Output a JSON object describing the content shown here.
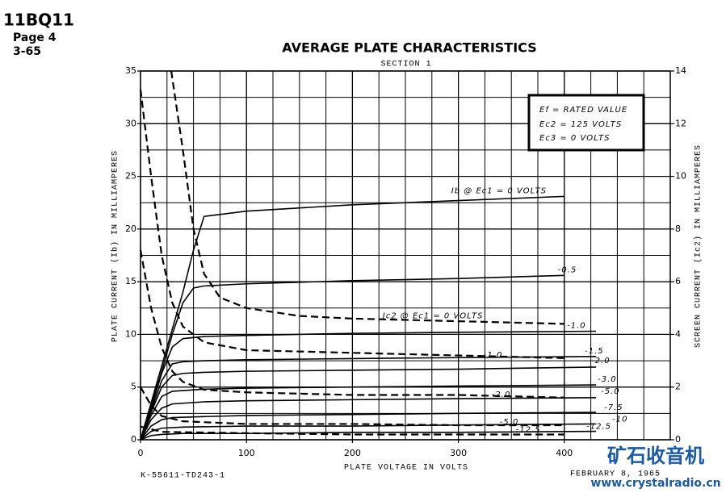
{
  "header": {
    "tube": "11BQ11",
    "page": "Page 4",
    "date_code": "3-65"
  },
  "footer": {
    "drawing_no": "K-55611-TD243-1",
    "date": "FEBRUARY 8, 1965"
  },
  "watermark": {
    "title": "矿石收音机",
    "url": "www.crystalradio.cn"
  },
  "chart_data": {
    "type": "line",
    "title": "AVERAGE PLATE CHARACTERISTICS",
    "subtitle": "SECTION 1",
    "x_label": "PLATE VOLTAGE IN VOLTS",
    "y_label": "PLATE CURRENT (Ib) IN MILLIAMPERES",
    "y2_label": "SCREEN CURRENT (Ic2) IN MILLIAMPERES",
    "notes": [
      "Ef = RATED VALUE",
      "Ec2 = 125 VOLTS",
      "Ec3 = 0 VOLTS"
    ],
    "xlim": [
      0,
      500
    ],
    "xticks": [
      0,
      100,
      200,
      300,
      400
    ],
    "ylim": [
      0,
      35
    ],
    "yticks": [
      0,
      5,
      10,
      15,
      20,
      25,
      30,
      35
    ],
    "y2lim": [
      0,
      14
    ],
    "y2ticks": [
      0,
      2,
      4,
      6,
      8,
      10,
      12,
      14
    ],
    "grid": true,
    "series": [
      {
        "name": "Ib @ Ec1 = 0 VOLTS",
        "color": "#000000",
        "x": [
          0,
          10,
          20,
          30,
          40,
          50,
          60,
          100,
          200,
          300,
          400
        ],
        "values": [
          0,
          3.5,
          7,
          10.5,
          14,
          18,
          21.2,
          21.7,
          22.3,
          22.7,
          23.1
        ]
      },
      {
        "name": "-0.5",
        "color": "#000000",
        "x": [
          0,
          10,
          20,
          30,
          40,
          50,
          60,
          100,
          200,
          300,
          400
        ],
        "values": [
          0,
          3.2,
          6.5,
          10,
          13,
          14.4,
          14.6,
          14.8,
          15.1,
          15.3,
          15.6
        ]
      },
      {
        "name": "-1.0",
        "color": "#000000",
        "x": [
          0,
          10,
          20,
          30,
          40,
          60,
          100,
          200,
          300,
          430
        ],
        "values": [
          0,
          3,
          6.3,
          8.8,
          9.6,
          9.8,
          9.9,
          10.1,
          10.2,
          10.3
        ]
      },
      {
        "name": "-1.5",
        "color": "#000000",
        "x": [
          0,
          10,
          20,
          30,
          40,
          60,
          100,
          200,
          300,
          430
        ],
        "values": [
          0,
          2.8,
          5.6,
          7.2,
          7.4,
          7.5,
          7.6,
          7.7,
          7.8,
          7.9
        ]
      },
      {
        "name": "-2.0",
        "color": "#000000",
        "x": [
          0,
          10,
          20,
          30,
          40,
          60,
          100,
          200,
          300,
          430
        ],
        "values": [
          0,
          2.6,
          5,
          6.1,
          6.3,
          6.4,
          6.5,
          6.6,
          6.7,
          6.9
        ]
      },
      {
        "name": "-3.0",
        "color": "#000000",
        "x": [
          0,
          10,
          20,
          30,
          60,
          100,
          200,
          300,
          430
        ],
        "values": [
          0,
          2.3,
          4.1,
          4.6,
          4.8,
          4.9,
          5,
          5.1,
          5.2
        ]
      },
      {
        "name": "-5.0",
        "color": "#000000",
        "x": [
          0,
          10,
          20,
          30,
          60,
          100,
          200,
          300,
          430
        ],
        "values": [
          0,
          1.9,
          3,
          3.4,
          3.6,
          3.7,
          3.8,
          3.9,
          4
        ]
      },
      {
        "name": "-7.5",
        "color": "#000000",
        "x": [
          0,
          10,
          20,
          30,
          60,
          100,
          200,
          300,
          430
        ],
        "values": [
          0,
          1.3,
          1.9,
          2.1,
          2.2,
          2.3,
          2.4,
          2.5,
          2.6
        ]
      },
      {
        "name": "-10",
        "color": "#000000",
        "x": [
          0,
          10,
          20,
          40,
          100,
          200,
          300,
          430
        ],
        "values": [
          0,
          0.8,
          1.1,
          1.2,
          1.3,
          1.3,
          1.4,
          1.5
        ]
      },
      {
        "name": "-12.5",
        "color": "#000000",
        "x": [
          0,
          10,
          20,
          40,
          100,
          200,
          300,
          430
        ],
        "values": [
          0,
          0.4,
          0.5,
          0.6,
          0.6,
          0.7,
          0.7,
          0.8
        ]
      },
      {
        "name": "Ic2 @ Ec1 = 0 VOLTS",
        "color": "#000000",
        "axis": "y2",
        "dashed": true,
        "x": [
          29,
          40,
          50,
          60,
          75,
          100,
          150,
          200,
          300,
          400
        ],
        "values": [
          14,
          11,
          8,
          6.3,
          5.4,
          5,
          4.7,
          4.6,
          4.5,
          4.4
        ]
      },
      {
        "name": "-1.0",
        "color": "#000000",
        "axis": "y2",
        "dashed": true,
        "x": [
          0,
          10,
          20,
          30,
          40,
          60,
          100,
          200,
          300,
          400
        ],
        "values": [
          13.3,
          10,
          7,
          5.2,
          4.3,
          3.7,
          3.4,
          3.3,
          3.2,
          3.1
        ]
      },
      {
        "name": "-2.0",
        "color": "#000000",
        "axis": "y2",
        "dashed": true,
        "x": [
          0,
          10,
          20,
          30,
          40,
          60,
          100,
          200,
          300,
          400
        ],
        "values": [
          7.2,
          5,
          3.5,
          2.6,
          2.2,
          1.9,
          1.8,
          1.7,
          1.7,
          1.6
        ]
      },
      {
        "name": "-5.0",
        "color": "#000000",
        "axis": "y2",
        "dashed": true,
        "x": [
          0,
          10,
          20,
          40,
          100,
          200,
          300,
          400
        ],
        "values": [
          2,
          1.3,
          0.9,
          0.7,
          0.6,
          0.6,
          0.55,
          0.55
        ]
      },
      {
        "name": "-12.5",
        "color": "#000000",
        "axis": "y2",
        "dashed": true,
        "x": [
          0,
          20,
          100,
          200,
          300,
          400
        ],
        "values": [
          0.5,
          0.3,
          0.25,
          0.2,
          0.2,
          0.2
        ]
      }
    ]
  }
}
